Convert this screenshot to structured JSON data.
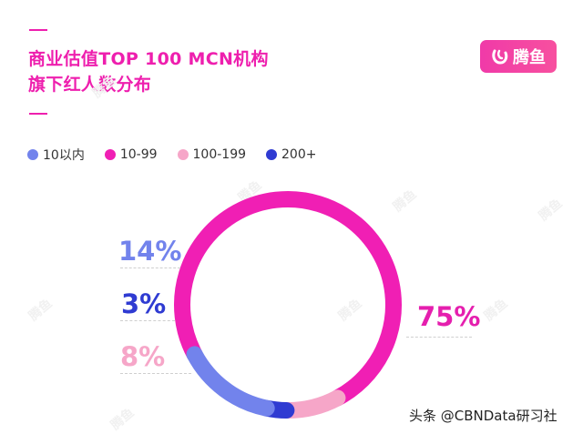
{
  "header": {
    "title_line1": "商业估值TOP 100 MCN机构",
    "title_line2": "旗下红人数分布",
    "accent_color": "#ee1fae"
  },
  "logo": {
    "icon": "tengyu-logo-icon",
    "text": "腾鱼"
  },
  "legend": [
    {
      "label": "10以内",
      "color": "#7283ec"
    },
    {
      "label": "10-99",
      "color": "#f01fb4"
    },
    {
      "label": "100-199",
      "color": "#f6a6c8"
    },
    {
      "label": "200+",
      "color": "#2f3bd2"
    }
  ],
  "labels": {
    "p10": "14%",
    "p200": "3%",
    "p100": "8%",
    "p99": "75%"
  },
  "source": "头条 @CBNData研习社",
  "chart_data": {
    "type": "pie",
    "subtype": "donut",
    "title": "商业估值TOP 100 MCN机构旗下红人数分布",
    "categories": [
      "10以内",
      "10-99",
      "100-199",
      "200+"
    ],
    "values": [
      14,
      75,
      8,
      3
    ],
    "unit": "%",
    "colors": [
      "#7283ec",
      "#f01fb4",
      "#f6a6c8",
      "#2f3bd2"
    ],
    "legend_position": "top-left"
  }
}
